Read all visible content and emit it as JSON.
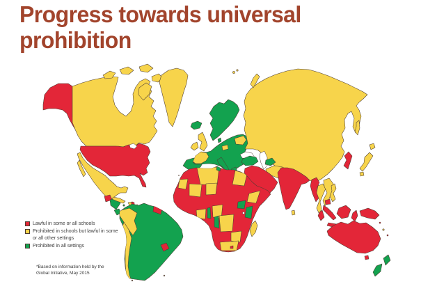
{
  "title": "Progress towards universal prohibition",
  "title_lines": [
    "Progress towards universal",
    "prohibition"
  ],
  "legend": {
    "items": [
      {
        "key": "lawful",
        "label": "Lawful in some or all schools",
        "color": "#e32638"
      },
      {
        "key": "prohibited_schools",
        "label": "Prohibited in schools but lawful in some or all other settings",
        "color": "#f7d44b"
      },
      {
        "key": "prohibited_all",
        "label": "Prohibited in all settings",
        "color": "#13a24f"
      }
    ]
  },
  "footnote_lines": [
    "*Based on information held by the",
    "Global Initiative, May 2015"
  ],
  "colors": {
    "red": "#e32638",
    "yellow": "#f7d44b",
    "green": "#13a24f",
    "title": "#a2442c",
    "border": "#4d3c32",
    "text": "#3c3c3c",
    "background": "#ffffff"
  },
  "map": {
    "type": "world_choropleth",
    "regions": {
      "alaska": "lawful",
      "usa": "lawful",
      "canada": "prohibited_schools",
      "arctic_islands_a": "prohibited_schools",
      "arctic_islands_b": "prohibited_schools",
      "arctic_islands_c": "prohibited_schools",
      "arctic_islands_d": "prohibited_schools",
      "baffin_island": "prohibited_schools",
      "greenland": "prohibited_schools",
      "iceland": "prohibited_all",
      "mexico": "prohibited_schools",
      "baja": "prohibited_schools",
      "guatemala": "lawful",
      "honduras_nicaragua": "prohibited_all",
      "costa_rica": "prohibited_all",
      "panama": "lawful",
      "cuba": "prohibited_schools",
      "hispaniola": "prohibited_schools",
      "hispaniola_east": "lawful",
      "puerto_rico": "prohibited_schools",
      "jamaica": "prohibited_all",
      "antilles_1": "lawful",
      "antilles_2": "prohibited_schools",
      "south_america": "prohibited_all",
      "colombia_peru": "prohibited_schools",
      "chile": "prohibited_schools",
      "paraguay": "lawful",
      "guyana_suriname": "lawful",
      "uk": "prohibited_schools",
      "ireland": "prohibited_schools",
      "scandinavia": "prohibited_all",
      "denmark": "prohibited_all",
      "iberia": "prohibited_all",
      "europe_central": "prohibited_all",
      "france": "prohibited_schools",
      "italy": "prohibited_all",
      "greece": "prohibited_all",
      "czech_slovakia": "prohibited_schools",
      "belarus_baltics": "prohibited_schools",
      "turkey": "prohibited_all",
      "israel": "prohibited_all",
      "russia_china_central_asia": "prohibited_schools",
      "sakhalin": "prohibited_schools",
      "novaya_zemlya": "prohibited_schools",
      "svalbard_1": "prohibited_schools",
      "svalbard_2": "prohibited_schools",
      "turkmenistan": "prohibited_all",
      "iran_afghanistan": "prohibited_schools",
      "middle_east": "lawful",
      "india_pakistan": "lawful",
      "sri_lanka": "prohibited_schools",
      "myanmar": "lawful",
      "thailand": "prohibited_schools",
      "laos_vietnam": "prohibited_schools",
      "cambodia": "lawful",
      "malaysia": "lawful",
      "korea": "lawful",
      "japan": "prohibited_schools",
      "hokkaido": "prohibited_schools",
      "kyushu": "prohibited_schools",
      "philippines": "prohibited_schools",
      "borneo": "lawful",
      "sumatra": "lawful",
      "java": "lawful",
      "sulawesi": "lawful",
      "new_guinea": "lawful",
      "australia": "lawful",
      "tasmania": "lawful",
      "new_zealand_north": "prohibited_all",
      "new_zealand_south": "prohibited_all",
      "pacific_1": "prohibited_schools",
      "pacific_2": "lawful",
      "pacific_3": "lawful",
      "africa": "lawful",
      "algeria": "prohibited_schools",
      "western_sahara": "prohibited_schools",
      "egypt": "prohibited_schools",
      "mali": "prohibited_schools",
      "niger": "prohibited_schools",
      "nigeria": "prohibited_schools",
      "ghana_ivory_coast": "prohibited_schools",
      "ethiopia": "prohibited_schools",
      "drc": "prohibited_schools",
      "zambia": "prohibited_schools",
      "south_africa": "prohibited_schools",
      "lesotho": "lawful",
      "tunisia": "prohibited_all",
      "togo_benin": "prohibited_all",
      "congo": "prohibited_all",
      "kenya": "prohibited_all",
      "south_sudan": "prohibited_all",
      "madagascar": "prohibited_schools"
    }
  }
}
